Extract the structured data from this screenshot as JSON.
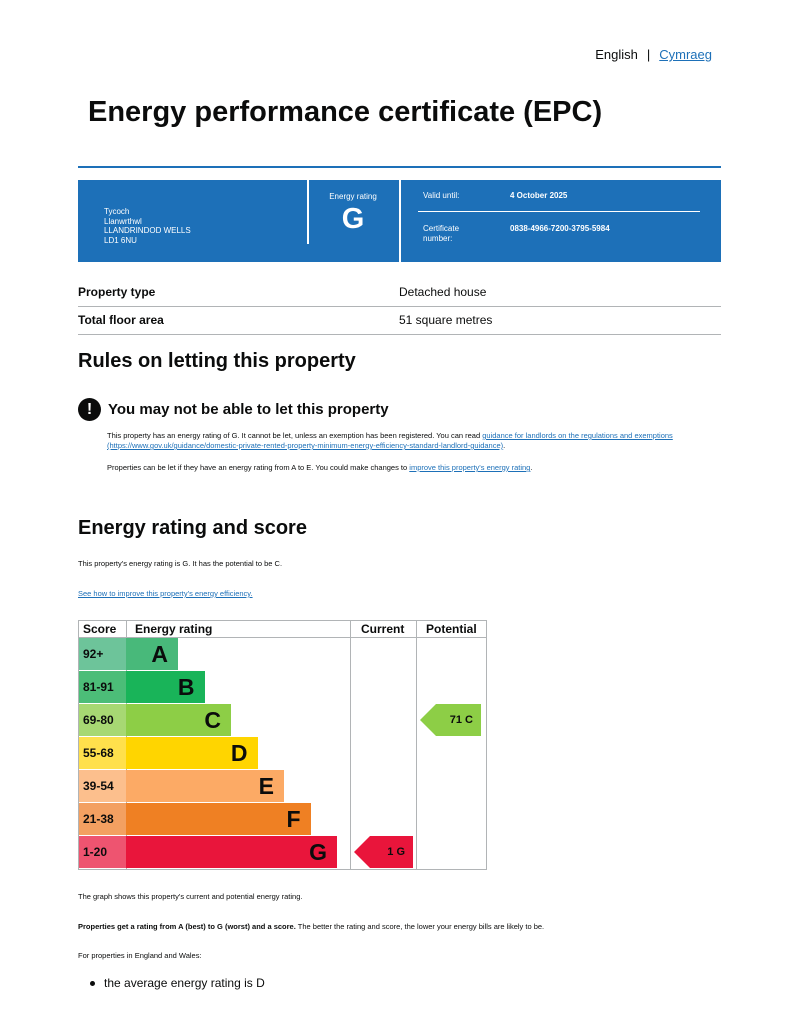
{
  "language": {
    "current": "English",
    "other": "Cymraeg",
    "separator": "|"
  },
  "title": "Energy performance certificate (EPC)",
  "certificate": {
    "address": [
      "Tycoch",
      "Llanwrthwl",
      "LLANDRINDOD WELLS",
      "LD1 6NU"
    ],
    "energy_rating_label": "Energy rating",
    "energy_rating": "G",
    "valid_until_label": "Valid until:",
    "valid_until": "4 October 2025",
    "certificate_number_label": "Certificate number:",
    "certificate_number": "0838-4966-7200-3795-5984"
  },
  "summary": [
    {
      "label": "Property type",
      "value": "Detached house"
    },
    {
      "label": "Total floor area",
      "value": "51 square metres"
    }
  ],
  "letting": {
    "heading": "Rules on letting this property",
    "warning_icon": "!",
    "warning": "You may not be able to let this property",
    "p1_text": "This property has an energy rating of G. It cannot be let, unless an exemption has been registered. You can read",
    "p1_link": "guidance for landlords on the regulations and exemptions (https://www.gov.uk/guidance/domestic-private-rented-property-minimum-energy-efficiency-standard-landlord-guidance)",
    "p1_end": ".",
    "p2_text": "Properties can be let if they have an energy rating from A to E. You could make changes to",
    "p2_link": "improve this property's energy rating",
    "p2_end": "."
  },
  "rating_section": {
    "heading": "Energy rating and score",
    "intro": "This property's energy rating is G. It has the potential to be C.",
    "link": "See how to improve this property's energy efficiency."
  },
  "chart_data": {
    "type": "table",
    "headers": [
      "Score",
      "Energy rating",
      "Current",
      "Potential"
    ],
    "bands": [
      {
        "score": "92+",
        "letter": "A",
        "color": "#48b97a",
        "score_bg": "#6dc49a"
      },
      {
        "score": "81-91",
        "letter": "B",
        "color": "#19b459",
        "score_bg": "#4cbd78"
      },
      {
        "score": "69-80",
        "letter": "C",
        "color": "#8dce46",
        "score_bg": "#a7d873"
      },
      {
        "score": "55-68",
        "letter": "D",
        "color": "#ffd500",
        "score_bg": "#ffe04c"
      },
      {
        "score": "39-54",
        "letter": "E",
        "color": "#fcaa65",
        "score_bg": "#fcbf8d"
      },
      {
        "score": "21-38",
        "letter": "F",
        "color": "#ef8023",
        "score_bg": "#f3a061"
      },
      {
        "score": "1-20",
        "letter": "G",
        "color": "#e9153b",
        "score_bg": "#ee5470"
      }
    ],
    "current": {
      "score": 1,
      "band": "G",
      "label": "1  G",
      "color": "#e9153b"
    },
    "potential": {
      "score": 71,
      "band": "C",
      "label": "71  C",
      "color": "#8dce46"
    }
  },
  "notes": {
    "graph": "The graph shows this property's current and potential energy rating.",
    "bold": "Properties get a rating from A (best) to G (worst) and a score.",
    "rest": " The better the rating and score, the lower your energy bills are likely to be.",
    "england": "For properties in England and Wales:",
    "bullet": "the average energy rating is D"
  }
}
